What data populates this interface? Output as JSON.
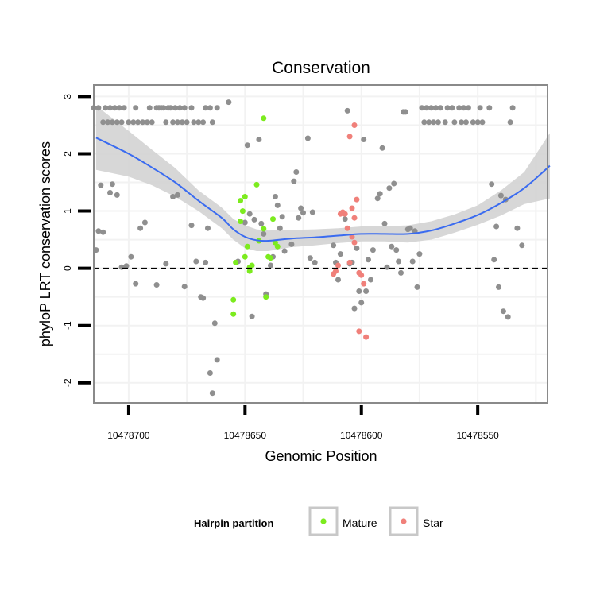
{
  "chart_data": {
    "type": "scatter",
    "title": "Conservation",
    "xlabel": "Genomic Position",
    "ylabel": "phyloP LRT conservation scores",
    "x_reversed": true,
    "xlim": [
      10478715,
      10478520
    ],
    "ylim": [
      -2.35,
      3.2
    ],
    "x_ticks": [
      10478700,
      10478650,
      10478600,
      10478550
    ],
    "x_tick_labels": [
      "10478700",
      "10478650",
      "10478600",
      "10478550"
    ],
    "y_ticks": [
      -2,
      -1,
      0,
      1,
      2,
      3
    ],
    "y_tick_labels": [
      "-2",
      "-1",
      "0",
      "1",
      "2",
      "3"
    ],
    "reference_line": {
      "y": 0,
      "style": "dashed"
    },
    "grid": true,
    "legend": {
      "title": "Hairpin partition",
      "position": "bottom",
      "entries": [
        {
          "label": "Mature",
          "color": "#7CEB1E"
        },
        {
          "label": "Star",
          "color": "#F0807A"
        }
      ]
    },
    "colors": {
      "other": "#8F8F8F",
      "mature": "#7CEB1E",
      "star": "#F0807A",
      "smooth": "#3A6BF0",
      "band": "#D3D3D3",
      "panel_border": "#8A8A8A",
      "grid": "#F2F2F2"
    },
    "series": [
      {
        "group": "other",
        "points": [
          [
            10478715,
            2.8
          ],
          [
            10478713,
            2.8
          ],
          [
            10478711,
            2.55
          ],
          [
            10478710,
            2.8
          ],
          [
            10478709,
            2.55
          ],
          [
            10478708,
            2.8
          ],
          [
            10478707,
            2.55
          ],
          [
            10478706,
            2.8
          ],
          [
            10478705,
            2.55
          ],
          [
            10478704,
            2.8
          ],
          [
            10478703,
            2.55
          ],
          [
            10478702,
            2.8
          ],
          [
            10478700,
            2.55
          ],
          [
            10478698,
            2.55
          ],
          [
            10478697,
            2.8
          ],
          [
            10478696,
            2.55
          ],
          [
            10478694,
            2.55
          ],
          [
            10478692,
            2.55
          ],
          [
            10478691,
            2.8
          ],
          [
            10478690,
            2.55
          ],
          [
            10478688,
            2.8
          ],
          [
            10478687,
            2.8
          ],
          [
            10478686,
            2.8
          ],
          [
            10478685,
            2.8
          ],
          [
            10478684,
            2.55
          ],
          [
            10478683,
            2.8
          ],
          [
            10478682,
            2.8
          ],
          [
            10478681,
            2.55
          ],
          [
            10478680,
            2.8
          ],
          [
            10478679,
            2.55
          ],
          [
            10478678,
            2.8
          ],
          [
            10478677,
            2.55
          ],
          [
            10478676,
            2.8
          ],
          [
            10478675,
            2.55
          ],
          [
            10478673,
            2.8
          ],
          [
            10478672,
            2.55
          ],
          [
            10478670,
            2.55
          ],
          [
            10478668,
            2.55
          ],
          [
            10478667,
            2.8
          ],
          [
            10478665,
            2.8
          ],
          [
            10478664,
            2.55
          ],
          [
            10478662,
            2.8
          ],
          [
            10478714,
            0.32
          ],
          [
            10478713,
            0.65
          ],
          [
            10478712,
            1.45
          ],
          [
            10478711,
            0.63
          ],
          [
            10478708,
            1.32
          ],
          [
            10478707,
            1.47
          ],
          [
            10478705,
            1.28
          ],
          [
            10478703,
            0.02
          ],
          [
            10478701,
            0.04
          ],
          [
            10478699,
            0.2
          ],
          [
            10478697,
            -0.27
          ],
          [
            10478695,
            0.7
          ],
          [
            10478693,
            0.8
          ],
          [
            10478688,
            -0.29
          ],
          [
            10478684,
            0.08
          ],
          [
            10478681,
            1.25
          ],
          [
            10478679,
            1.28
          ],
          [
            10478676,
            -0.32
          ],
          [
            10478673,
            0.75
          ],
          [
            10478671,
            0.12
          ],
          [
            10478669,
            -0.5
          ],
          [
            10478668,
            -0.52
          ],
          [
            10478667,
            0.1
          ],
          [
            10478666,
            0.7
          ],
          [
            10478665,
            -1.83
          ],
          [
            10478664,
            -2.18
          ],
          [
            10478663,
            -0.96
          ],
          [
            10478662,
            -1.6
          ],
          [
            10478657,
            2.9
          ],
          [
            10478653,
            0.12
          ],
          [
            10478650,
            0.8
          ],
          [
            10478649,
            2.15
          ],
          [
            10478648,
            0.95
          ],
          [
            10478647,
            -0.84
          ],
          [
            10478646,
            0.85
          ],
          [
            10478644,
            2.25
          ],
          [
            10478643,
            0.78
          ],
          [
            10478642,
            0.6
          ],
          [
            10478641,
            -0.45
          ],
          [
            10478639,
            0.05
          ],
          [
            10478638,
            0.2
          ],
          [
            10478637,
            1.25
          ],
          [
            10478636,
            1.1
          ],
          [
            10478635,
            0.7
          ],
          [
            10478634,
            0.9
          ],
          [
            10478633,
            0.3
          ],
          [
            10478630,
            0.42
          ],
          [
            10478629,
            1.52
          ],
          [
            10478628,
            1.68
          ],
          [
            10478627,
            0.88
          ],
          [
            10478626,
            1.05
          ],
          [
            10478625,
            0.97
          ],
          [
            10478623,
            2.27
          ],
          [
            10478622,
            0.18
          ],
          [
            10478621,
            0.98
          ],
          [
            10478620,
            0.1
          ],
          [
            10478612,
            0.4
          ],
          [
            10478611,
            0.1
          ],
          [
            10478610,
            -0.2
          ],
          [
            10478609,
            0.25
          ],
          [
            10478607,
            0.86
          ],
          [
            10478606,
            2.75
          ],
          [
            10478605,
            0.08
          ],
          [
            10478604,
            0.1
          ],
          [
            10478603,
            -0.7
          ],
          [
            10478602,
            0.35
          ],
          [
            10478601,
            -0.4
          ],
          [
            10478600,
            -0.6
          ],
          [
            10478599,
            2.25
          ],
          [
            10478598,
            -0.4
          ],
          [
            10478597,
            0.15
          ],
          [
            10478596,
            -0.2
          ],
          [
            10478595,
            0.32
          ],
          [
            10478593,
            1.22
          ],
          [
            10478592,
            1.3
          ],
          [
            10478591,
            2.1
          ],
          [
            10478590,
            0.78
          ],
          [
            10478589,
            0.02
          ],
          [
            10478588,
            1.4
          ],
          [
            10478587,
            0.38
          ],
          [
            10478586,
            1.48
          ],
          [
            10478585,
            0.32
          ],
          [
            10478584,
            0.12
          ],
          [
            10478583,
            -0.08
          ],
          [
            10478582,
            2.73
          ],
          [
            10478581,
            2.73
          ],
          [
            10478580,
            0.68
          ],
          [
            10478579,
            0.7
          ],
          [
            10478578,
            0.12
          ],
          [
            10478577,
            0.65
          ],
          [
            10478576,
            -0.33
          ],
          [
            10478575,
            0.25
          ],
          [
            10478574,
            2.8
          ],
          [
            10478573,
            2.55
          ],
          [
            10478572,
            2.8
          ],
          [
            10478571,
            2.55
          ],
          [
            10478570,
            2.8
          ],
          [
            10478569,
            2.55
          ],
          [
            10478568,
            2.8
          ],
          [
            10478567,
            2.55
          ],
          [
            10478566,
            2.8
          ],
          [
            10478564,
            2.55
          ],
          [
            10478563,
            2.8
          ],
          [
            10478561,
            2.8
          ],
          [
            10478560,
            2.55
          ],
          [
            10478558,
            2.8
          ],
          [
            10478557,
            2.55
          ],
          [
            10478556,
            2.8
          ],
          [
            10478555,
            2.55
          ],
          [
            10478554,
            2.8
          ],
          [
            10478552,
            2.55
          ],
          [
            10478550,
            2.55
          ],
          [
            10478549,
            2.8
          ],
          [
            10478548,
            2.55
          ],
          [
            10478545,
            2.8
          ],
          [
            10478544,
            1.47
          ],
          [
            10478543,
            0.15
          ],
          [
            10478542,
            0.73
          ],
          [
            10478541,
            -0.33
          ],
          [
            10478540,
            1.27
          ],
          [
            10478539,
            -0.75
          ],
          [
            10478538,
            1.2
          ],
          [
            10478537,
            -0.85
          ],
          [
            10478536,
            2.55
          ],
          [
            10478535,
            2.8
          ],
          [
            10478533,
            0.7
          ],
          [
            10478531,
            0.4
          ]
        ]
      },
      {
        "group": "mature",
        "points": [
          [
            10478650,
            1.25
          ],
          [
            10478652,
            1.18
          ],
          [
            10478651,
            1.0
          ],
          [
            10478652,
            0.82
          ],
          [
            10478649,
            0.38
          ],
          [
            10478650,
            0.2
          ],
          [
            10478648,
            -0.05
          ],
          [
            10478648,
            0.02
          ],
          [
            10478647,
            0.05
          ],
          [
            10478654,
            0.1
          ],
          [
            10478655,
            -0.55
          ],
          [
            10478655,
            -0.8
          ],
          [
            10478645,
            1.46
          ],
          [
            10478642,
            2.62
          ],
          [
            10478642,
            0.69
          ],
          [
            10478644,
            0.48
          ],
          [
            10478640,
            0.2
          ],
          [
            10478641,
            -0.5
          ],
          [
            10478638,
            0.86
          ],
          [
            10478639,
            0.18
          ],
          [
            10478637,
            0.45
          ],
          [
            10478636,
            0.38
          ]
        ]
      },
      {
        "group": "star",
        "points": [
          [
            10478603,
            2.5
          ],
          [
            10478605,
            2.3
          ],
          [
            10478604,
            1.05
          ],
          [
            10478603,
            0.88
          ],
          [
            10478602,
            1.2
          ],
          [
            10478607,
            0.95
          ],
          [
            10478609,
            0.95
          ],
          [
            10478608,
            0.98
          ],
          [
            10478606,
            0.7
          ],
          [
            10478610,
            0.05
          ],
          [
            10478611,
            -0.05
          ],
          [
            10478612,
            -0.1
          ],
          [
            10478605,
            0.1
          ],
          [
            10478601,
            -0.08
          ],
          [
            10478600,
            -0.12
          ],
          [
            10478599,
            -0.27
          ],
          [
            10478601,
            -1.1
          ],
          [
            10478598,
            -1.2
          ],
          [
            10478603,
            0.45
          ],
          [
            10478604,
            0.55
          ]
        ]
      }
    ],
    "smooth": {
      "x": [
        10478714,
        10478700,
        10478690,
        10478680,
        10478670,
        10478660,
        10478655,
        10478650,
        10478645,
        10478640,
        10478630,
        10478620,
        10478610,
        10478600,
        10478590,
        10478580,
        10478570,
        10478560,
        10478550,
        10478540,
        10478530,
        10478519
      ],
      "y": [
        2.28,
        2.0,
        1.76,
        1.5,
        1.18,
        0.88,
        0.68,
        0.55,
        0.49,
        0.48,
        0.52,
        0.54,
        0.57,
        0.6,
        0.6,
        0.6,
        0.66,
        0.78,
        0.93,
        1.14,
        1.4,
        1.79
      ],
      "lower": [
        1.72,
        1.6,
        1.45,
        1.25,
        1.0,
        0.7,
        0.5,
        0.35,
        0.3,
        0.3,
        0.37,
        0.4,
        0.44,
        0.47,
        0.47,
        0.45,
        0.5,
        0.62,
        0.76,
        0.92,
        1.12,
        1.22
      ],
      "upper": [
        2.84,
        2.4,
        2.07,
        1.75,
        1.36,
        1.06,
        0.86,
        0.75,
        0.68,
        0.66,
        0.67,
        0.68,
        0.7,
        0.73,
        0.73,
        0.75,
        0.82,
        0.94,
        1.1,
        1.36,
        1.68,
        2.36
      ]
    }
  }
}
